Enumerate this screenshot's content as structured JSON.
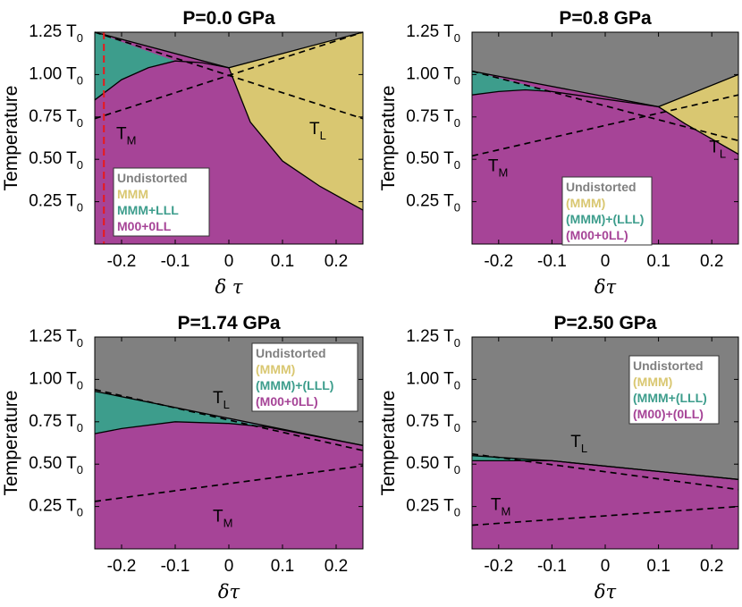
{
  "colors": {
    "undistorted": "#808080",
    "mmm": "#d9c771",
    "mmm_lll": "#3d9d8c",
    "m00": "#a64497",
    "guide": "#e8191c"
  },
  "chart_data": [
    {
      "type": "area",
      "title": "P=0.0 GPa",
      "xlabel": "δ τ",
      "ylabel": "Temperature",
      "xlim": [
        -0.25,
        0.25
      ],
      "ylim": [
        0.0,
        1.25
      ],
      "x_ticks": [
        "-0.2",
        "-0.1",
        "0",
        "0.1",
        "0.2"
      ],
      "x_tick_values": [
        -0.2,
        -0.1,
        0,
        0.1,
        0.2
      ],
      "y_tick_values": [
        0.25,
        0.5,
        0.75,
        1.0,
        1.25
      ],
      "y_ticks": [
        "0.25 T",
        "0.50 T",
        "0.75 T",
        "1.00 T",
        "1.25 T"
      ],
      "y_tick_subscript": "0",
      "legend": [
        "Undistorted",
        "MMM",
        "MMM+LLL",
        "M00+0LL"
      ],
      "legend_position": "bottom-left",
      "regions": {
        "undistorted": {
          "top": [
            [
              -0.25,
              1.25
            ],
            [
              0.25,
              1.25
            ]
          ],
          "bottom": [
            [
              0.25,
              1.25
            ],
            [
              0.0,
              1.04
            ],
            [
              -0.25,
              1.25
            ]
          ]
        },
        "mmm": {
          "polygon": [
            [
              0.0,
              1.04
            ],
            [
              0.25,
              1.25
            ],
            [
              0.25,
              0.2
            ],
            [
              0.17,
              0.34
            ],
            [
              0.1,
              0.49
            ],
            [
              0.04,
              0.72
            ],
            [
              0.0,
              1.04
            ]
          ]
        },
        "mmm_lll": {
          "polygon": [
            [
              -0.25,
              1.25
            ],
            [
              -0.1,
              1.08
            ],
            [
              -0.15,
              1.04
            ],
            [
              -0.2,
              0.97
            ],
            [
              -0.25,
              0.85
            ]
          ]
        },
        "m00": {
          "boundary": [
            [
              -0.25,
              0.85
            ],
            [
              -0.2,
              0.97
            ],
            [
              -0.15,
              1.04
            ],
            [
              -0.1,
              1.08
            ],
            [
              -0.05,
              1.07
            ],
            [
              0.0,
              1.04
            ],
            [
              0.04,
              0.72
            ],
            [
              0.1,
              0.49
            ],
            [
              0.17,
              0.34
            ],
            [
              0.25,
              0.2
            ]
          ]
        }
      },
      "dashed_lines": [
        {
          "name": "T_M",
          "points": [
            [
              -0.25,
              0.74
            ],
            [
              0.25,
              1.25
            ]
          ]
        },
        {
          "name": "T_L",
          "points": [
            [
              -0.25,
              1.25
            ],
            [
              0.25,
              0.74
            ]
          ]
        }
      ],
      "vertical_guide_x": -0.233,
      "curve_labels": [
        {
          "text": "T",
          "sub": "M",
          "x": -0.21,
          "y": 0.62
        },
        {
          "text": "T",
          "sub": "L",
          "x": 0.15,
          "y": 0.65
        }
      ]
    },
    {
      "type": "area",
      "title": "P=0.8 GPa",
      "xlabel": "δτ",
      "ylabel": "Temperature",
      "xlim": [
        -0.25,
        0.25
      ],
      "ylim": [
        0.0,
        1.25
      ],
      "x_ticks": [
        "-0.2",
        "-0.1",
        "0",
        "0.1",
        "0.2"
      ],
      "x_tick_values": [
        -0.2,
        -0.1,
        0,
        0.1,
        0.2
      ],
      "y_tick_values": [
        0.25,
        0.5,
        0.75,
        1.0,
        1.25
      ],
      "y_ticks": [
        "0.25 T",
        "0.50 T",
        "0.75 T",
        "1.00 T",
        "1.25 T"
      ],
      "y_tick_subscript": "0",
      "legend": [
        "Undistorted",
        "(MMM)",
        "(MMM)+(LLL)",
        "(M00+0LL)"
      ],
      "legend_position": "bottom-right",
      "regions": {
        "undistorted": {
          "bottom": [
            [
              -0.25,
              1.02
            ],
            [
              0.1,
              0.81
            ],
            [
              0.25,
              1.0
            ]
          ]
        },
        "mmm": {
          "polygon": [
            [
              0.1,
              0.81
            ],
            [
              0.25,
              1.0
            ],
            [
              0.25,
              0.53
            ],
            [
              0.2,
              0.62
            ],
            [
              0.15,
              0.71
            ],
            [
              0.1,
              0.81
            ]
          ]
        },
        "mmm_lll": {
          "polygon": [
            [
              -0.25,
              1.02
            ],
            [
              -0.1,
              0.9
            ],
            [
              -0.15,
              0.91
            ],
            [
              -0.2,
              0.9
            ],
            [
              -0.25,
              0.88
            ]
          ]
        },
        "m00": {
          "boundary": [
            [
              -0.25,
              0.88
            ],
            [
              -0.2,
              0.9
            ],
            [
              -0.15,
              0.91
            ],
            [
              -0.1,
              0.9
            ],
            [
              0.1,
              0.81
            ],
            [
              0.15,
              0.71
            ],
            [
              0.2,
              0.62
            ],
            [
              0.25,
              0.53
            ]
          ]
        }
      },
      "dashed_lines": [
        {
          "name": "T_M",
          "points": [
            [
              -0.25,
              0.52
            ],
            [
              0.25,
              0.88
            ]
          ]
        },
        {
          "name": "T_L",
          "points": [
            [
              -0.25,
              1.02
            ],
            [
              0.25,
              0.61
            ]
          ]
        }
      ],
      "curve_labels": [
        {
          "text": "T",
          "sub": "M",
          "x": -0.22,
          "y": 0.43
        },
        {
          "text": "T",
          "sub": "L",
          "x": 0.195,
          "y": 0.54
        }
      ]
    },
    {
      "type": "area",
      "title": "P=1.74 GPa",
      "xlabel": "δτ",
      "ylabel": "Temperature",
      "xlim": [
        -0.25,
        0.25
      ],
      "ylim": [
        0.0,
        1.25
      ],
      "x_ticks": [
        "-0.2",
        "-0.1",
        "0",
        "0.1",
        "0.2"
      ],
      "x_tick_values": [
        -0.2,
        -0.1,
        0,
        0.1,
        0.2
      ],
      "y_tick_values": [
        0.25,
        0.5,
        0.75,
        1.0,
        1.25
      ],
      "y_ticks": [
        "0.25 T",
        "0.50 T",
        "0.75 T",
        "1.00 T",
        "1.25 T"
      ],
      "y_tick_subscript": "0",
      "legend": [
        "Undistorted",
        "(MMM)",
        "(MMM)+(LLL)",
        "(M00+0LL)"
      ],
      "legend_position": "top-right",
      "regions": {
        "undistorted": {
          "bottom": [
            [
              -0.25,
              0.93
            ],
            [
              0.25,
              0.61
            ]
          ]
        },
        "mmm_lll": {
          "polygon": [
            [
              -0.25,
              0.93
            ],
            [
              0.07,
              0.72
            ],
            [
              0.0,
              0.74
            ],
            [
              -0.1,
              0.75
            ],
            [
              -0.2,
              0.71
            ],
            [
              -0.25,
              0.68
            ]
          ]
        },
        "m00": {
          "boundary": [
            [
              -0.25,
              0.68
            ],
            [
              -0.2,
              0.71
            ],
            [
              -0.1,
              0.75
            ],
            [
              0.0,
              0.74
            ],
            [
              0.07,
              0.72
            ],
            [
              0.25,
              0.61
            ]
          ]
        }
      },
      "dashed_lines": [
        {
          "name": "T_M",
          "points": [
            [
              -0.25,
              0.28
            ],
            [
              0.25,
              0.49
            ]
          ]
        },
        {
          "name": "T_L",
          "points": [
            [
              -0.25,
              0.94
            ],
            [
              0.25,
              0.58
            ]
          ]
        }
      ],
      "curve_labels": [
        {
          "text": "T",
          "sub": "L",
          "x": -0.03,
          "y": 0.86
        },
        {
          "text": "T",
          "sub": "M",
          "x": -0.03,
          "y": 0.16
        }
      ]
    },
    {
      "type": "area",
      "title": "P=2.50 GPa",
      "xlabel": "δτ",
      "ylabel": "Temperature",
      "xlim": [
        -0.25,
        0.25
      ],
      "ylim": [
        0.0,
        1.25
      ],
      "x_ticks": [
        "-0.2",
        "-0.1",
        "0",
        "0.1",
        "0.2"
      ],
      "x_tick_values": [
        -0.2,
        -0.1,
        0,
        0.1,
        0.2
      ],
      "y_tick_values": [
        0.25,
        0.5,
        0.75,
        1.0,
        1.25
      ],
      "y_ticks": [
        "0.25 T",
        "0.50 T",
        "0.75 T",
        "1.00 T",
        "1.25 T"
      ],
      "y_tick_subscript": "0",
      "legend": [
        "Undistorted",
        "(MMM)",
        "(MMM+(LLL)",
        "(M00)+(0LL)"
      ],
      "legend_position": "top-right",
      "regions": {
        "undistorted": {
          "bottom": [
            [
              -0.25,
              0.55
            ],
            [
              -0.1,
              0.52
            ],
            [
              0.25,
              0.41
            ]
          ]
        },
        "mmm_lll": {
          "polygon": [
            [
              -0.25,
              0.55
            ],
            [
              -0.1,
              0.52
            ],
            [
              -0.15,
              0.52
            ],
            [
              -0.25,
              0.52
            ]
          ]
        },
        "m00": {
          "boundary": [
            [
              -0.25,
              0.52
            ],
            [
              -0.15,
              0.52
            ],
            [
              -0.1,
              0.52
            ],
            [
              0.25,
              0.41
            ]
          ]
        }
      },
      "dashed_lines": [
        {
          "name": "T_M",
          "points": [
            [
              -0.25,
              0.14
            ],
            [
              0.25,
              0.25
            ]
          ]
        },
        {
          "name": "T_L",
          "points": [
            [
              -0.25,
              0.56
            ],
            [
              0.25,
              0.35
            ]
          ]
        }
      ],
      "curve_labels": [
        {
          "text": "T",
          "sub": "L",
          "x": -0.065,
          "y": 0.6
        },
        {
          "text": "T",
          "sub": "M",
          "x": -0.215,
          "y": 0.23
        }
      ]
    }
  ]
}
